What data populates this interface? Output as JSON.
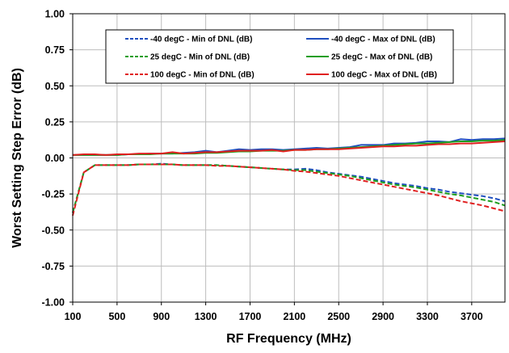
{
  "chart_data": {
    "type": "line",
    "title": "",
    "xlabel": "RF Frequency (MHz)",
    "ylabel": "Worst Setting Step Error (dB)",
    "xlim": [
      100,
      4000
    ],
    "ylim": [
      -1.0,
      1.0
    ],
    "x_ticks": [
      100,
      500,
      900,
      1300,
      1700,
      2100,
      2500,
      2900,
      3300,
      3700
    ],
    "x_tick_labels": [
      "100",
      "500",
      "900",
      "1300",
      "1700",
      "2100",
      "2500",
      "2900",
      "3300",
      "3700"
    ],
    "y_ticks": [
      -1.0,
      -0.75,
      -0.5,
      -0.25,
      0.0,
      0.25,
      0.5,
      0.75,
      1.0
    ],
    "y_tick_labels": [
      "-1.00",
      "-0.75",
      "-0.50",
      "-0.25",
      "0.00",
      "0.25",
      "0.50",
      "0.75",
      "1.00"
    ],
    "grid": true,
    "legend_position": "top",
    "series": [
      {
        "name": "-40 degC - Min of DNL (dB)",
        "color": "#1f4fbf",
        "dash": "dashed",
        "x": [
          100,
          200,
          300,
          400,
          500,
          600,
          700,
          800,
          900,
          1000,
          1100,
          1200,
          1300,
          1400,
          1500,
          1600,
          1700,
          1800,
          1900,
          2000,
          2100,
          2200,
          2300,
          2400,
          2500,
          2600,
          2700,
          2800,
          2900,
          3000,
          3100,
          3200,
          3300,
          3400,
          3500,
          3600,
          3700,
          3800,
          3900,
          4000
        ],
        "y": [
          -0.38,
          -0.1,
          -0.05,
          -0.05,
          -0.05,
          -0.05,
          -0.045,
          -0.045,
          -0.04,
          -0.045,
          -0.05,
          -0.05,
          -0.05,
          -0.05,
          -0.055,
          -0.06,
          -0.065,
          -0.07,
          -0.075,
          -0.08,
          -0.08,
          -0.075,
          -0.085,
          -0.1,
          -0.11,
          -0.12,
          -0.13,
          -0.145,
          -0.16,
          -0.175,
          -0.185,
          -0.195,
          -0.21,
          -0.22,
          -0.235,
          -0.245,
          -0.255,
          -0.265,
          -0.28,
          -0.3
        ]
      },
      {
        "name": "-40 degC - Max of DNL (dB)",
        "color": "#1f4fbf",
        "dash": "solid",
        "x": [
          100,
          200,
          300,
          400,
          500,
          600,
          700,
          800,
          900,
          1000,
          1100,
          1200,
          1300,
          1400,
          1500,
          1600,
          1700,
          1800,
          1900,
          2000,
          2100,
          2200,
          2300,
          2400,
          2500,
          2600,
          2700,
          2800,
          2900,
          3000,
          3100,
          3200,
          3300,
          3400,
          3500,
          3600,
          3700,
          3800,
          3900,
          4000
        ],
        "y": [
          0.02,
          0.02,
          0.02,
          0.02,
          0.02,
          0.025,
          0.025,
          0.03,
          0.03,
          0.03,
          0.035,
          0.04,
          0.05,
          0.04,
          0.05,
          0.06,
          0.055,
          0.06,
          0.06,
          0.055,
          0.06,
          0.065,
          0.07,
          0.065,
          0.07,
          0.075,
          0.09,
          0.09,
          0.09,
          0.1,
          0.1,
          0.105,
          0.115,
          0.115,
          0.11,
          0.13,
          0.125,
          0.13,
          0.13,
          0.135
        ]
      },
      {
        "name": "25 degC - Min of DNL (dB)",
        "color": "#1e9e1e",
        "dash": "dashed",
        "x": [
          100,
          200,
          300,
          400,
          500,
          600,
          700,
          800,
          900,
          1000,
          1100,
          1200,
          1300,
          1400,
          1500,
          1600,
          1700,
          1800,
          1900,
          2000,
          2100,
          2200,
          2300,
          2400,
          2500,
          2600,
          2700,
          2800,
          2900,
          3000,
          3100,
          3200,
          3300,
          3400,
          3500,
          3600,
          3700,
          3800,
          3900,
          4000
        ],
        "y": [
          -0.38,
          -0.1,
          -0.05,
          -0.05,
          -0.05,
          -0.05,
          -0.045,
          -0.045,
          -0.045,
          -0.045,
          -0.05,
          -0.05,
          -0.05,
          -0.05,
          -0.055,
          -0.06,
          -0.065,
          -0.07,
          -0.075,
          -0.08,
          -0.085,
          -0.085,
          -0.095,
          -0.105,
          -0.115,
          -0.125,
          -0.14,
          -0.155,
          -0.17,
          -0.185,
          -0.195,
          -0.205,
          -0.22,
          -0.235,
          -0.25,
          -0.26,
          -0.275,
          -0.29,
          -0.305,
          -0.33
        ]
      },
      {
        "name": "25 degC - Max of DNL (dB)",
        "color": "#1e9e1e",
        "dash": "solid",
        "x": [
          100,
          200,
          300,
          400,
          500,
          600,
          700,
          800,
          900,
          1000,
          1100,
          1200,
          1300,
          1400,
          1500,
          1600,
          1700,
          1800,
          1900,
          2000,
          2100,
          2200,
          2300,
          2400,
          2500,
          2600,
          2700,
          2800,
          2900,
          3000,
          3100,
          3200,
          3300,
          3400,
          3500,
          3600,
          3700,
          3800,
          3900,
          4000
        ],
        "y": [
          0.02,
          0.02,
          0.02,
          0.02,
          0.02,
          0.025,
          0.025,
          0.025,
          0.03,
          0.03,
          0.03,
          0.03,
          0.035,
          0.035,
          0.04,
          0.045,
          0.045,
          0.05,
          0.05,
          0.05,
          0.055,
          0.055,
          0.06,
          0.06,
          0.065,
          0.07,
          0.075,
          0.08,
          0.085,
          0.09,
          0.095,
          0.1,
          0.1,
          0.105,
          0.11,
          0.115,
          0.115,
          0.12,
          0.12,
          0.125
        ]
      },
      {
        "name": "100 degC - Min of DNL (dB)",
        "color": "#e02020",
        "dash": "dashed",
        "x": [
          100,
          200,
          300,
          400,
          500,
          600,
          700,
          800,
          900,
          1000,
          1100,
          1200,
          1300,
          1400,
          1500,
          1600,
          1700,
          1800,
          1900,
          2000,
          2100,
          2200,
          2300,
          2400,
          2500,
          2600,
          2700,
          2800,
          2900,
          3000,
          3100,
          3200,
          3300,
          3400,
          3500,
          3600,
          3700,
          3800,
          3900,
          4000
        ],
        "y": [
          -0.4,
          -0.1,
          -0.05,
          -0.05,
          -0.05,
          -0.05,
          -0.045,
          -0.045,
          -0.045,
          -0.045,
          -0.05,
          -0.05,
          -0.05,
          -0.055,
          -0.055,
          -0.06,
          -0.065,
          -0.07,
          -0.075,
          -0.08,
          -0.09,
          -0.095,
          -0.105,
          -0.115,
          -0.125,
          -0.14,
          -0.155,
          -0.17,
          -0.185,
          -0.2,
          -0.215,
          -0.23,
          -0.245,
          -0.26,
          -0.28,
          -0.3,
          -0.315,
          -0.33,
          -0.35,
          -0.37
        ]
      },
      {
        "name": "100 degC - Max of DNL (dB)",
        "color": "#e02020",
        "dash": "solid",
        "x": [
          100,
          200,
          300,
          400,
          500,
          600,
          700,
          800,
          900,
          1000,
          1100,
          1200,
          1300,
          1400,
          1500,
          1600,
          1700,
          1800,
          1900,
          2000,
          2100,
          2200,
          2300,
          2400,
          2500,
          2600,
          2700,
          2800,
          2900,
          3000,
          3100,
          3200,
          3300,
          3400,
          3500,
          3600,
          3700,
          3800,
          3900,
          4000
        ],
        "y": [
          0.02,
          0.025,
          0.025,
          0.02,
          0.025,
          0.025,
          0.03,
          0.03,
          0.03,
          0.04,
          0.03,
          0.035,
          0.04,
          0.04,
          0.045,
          0.05,
          0.05,
          0.05,
          0.055,
          0.045,
          0.055,
          0.055,
          0.06,
          0.06,
          0.06,
          0.065,
          0.07,
          0.075,
          0.08,
          0.08,
          0.085,
          0.085,
          0.09,
          0.095,
          0.095,
          0.1,
          0.1,
          0.105,
          0.11,
          0.115
        ]
      }
    ]
  }
}
